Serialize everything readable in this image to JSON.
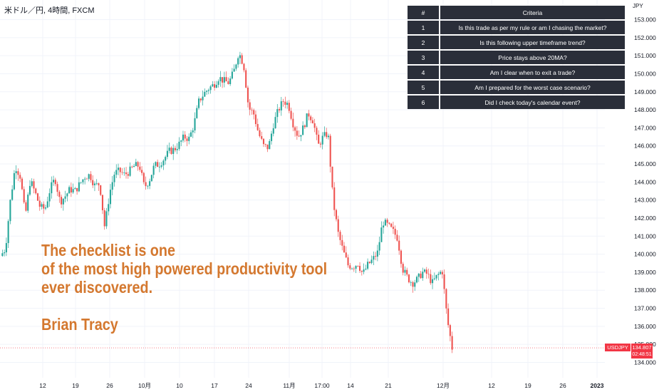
{
  "header": {
    "symbol_title": "米ドル／円, 4時間, FXCM"
  },
  "y_axis": {
    "unit": "JPY",
    "ticks": [
      "153.000",
      "152.000",
      "151.000",
      "150.000",
      "149.000",
      "148.000",
      "147.000",
      "146.000",
      "145.000",
      "144.000",
      "143.000",
      "142.000",
      "141.000",
      "140.000",
      "139.000",
      "138.000",
      "137.000",
      "136.000",
      "135.000",
      "134.000"
    ]
  },
  "x_axis": {
    "ticks": [
      "12",
      "19",
      "26",
      "10月",
      "10",
      "17",
      "24",
      "11月",
      "17:00",
      "14",
      "21",
      "12月",
      "12",
      "19",
      "26",
      "2023"
    ]
  },
  "checklist": {
    "header_num": "#",
    "header_criteria": "Criteria",
    "rows": [
      {
        "num": "1",
        "text": "Is this trade as per my rule or am I chasing the market?"
      },
      {
        "num": "2",
        "text": "Is this following upper timeframe trend?"
      },
      {
        "num": "3",
        "text": "Price stays above 20MA?"
      },
      {
        "num": "4",
        "text": "Am I clear when to exit a trade?"
      },
      {
        "num": "5",
        "text": "Am I prepared for the worst case scenario?"
      },
      {
        "num": "6",
        "text": "Did I check today's calendar event?"
      }
    ]
  },
  "quote": {
    "line1": "The checklist is one",
    "line2": "of the most high powered productivity tool",
    "line3": "ever discovered.",
    "author": "Brian Tracy"
  },
  "price_marker": {
    "symbol": "USDJPY",
    "price": "134.807",
    "countdown": "02:48:51"
  },
  "chart_data": {
    "type": "candlestick",
    "ylim": [
      133.8,
      153.3
    ],
    "last_price": 134.807,
    "colors": {
      "up": "#26a69a",
      "down": "#ef5350",
      "text_accent": "#d4782f",
      "table_bg": "#2a2e39"
    },
    "path": [
      139.9,
      140.3,
      143.0,
      144.9,
      144.3,
      142.1,
      144.1,
      143.4,
      142.6,
      142.5,
      143.6,
      144.2,
      142.9,
      143.2,
      143.6,
      143.5,
      143.9,
      144.3,
      144.4,
      143.8,
      143.9,
      141.5,
      143.4,
      144.5,
      144.6,
      144.4,
      144.6,
      144.9,
      144.9,
      143.7,
      144.1,
      144.9,
      145.0,
      145.3,
      145.7,
      145.8,
      146.1,
      146.5,
      146.4,
      147.2,
      148.5,
      148.9,
      149.2,
      149.4,
      149.8,
      149.6,
      149.5,
      150.1,
      151.2,
      150.5,
      148.1,
      147.8,
      146.7,
      146.0,
      145.9,
      147.2,
      148.0,
      148.5,
      148.3,
      147.2,
      146.5,
      147.0,
      147.8,
      147.4,
      146.0,
      146.5,
      146.7,
      143.0,
      141.2,
      140.2,
      139.4,
      139.3,
      139.5,
      138.9,
      139.4,
      139.7,
      140.1,
      141.8,
      141.6,
      141.3,
      140.9,
      139.2,
      138.7,
      138.4,
      138.6,
      139.0,
      138.9,
      138.4,
      138.8,
      139.1,
      136.4,
      134.8
    ]
  }
}
